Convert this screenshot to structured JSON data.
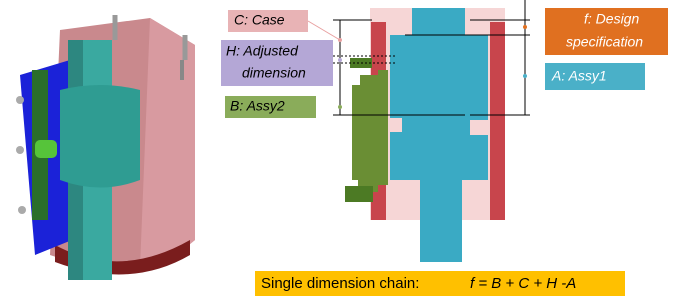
{
  "labels": {
    "case": "C: Case",
    "adjusted": [
      "H: Adjusted",
      "dimension"
    ],
    "assy2": "B: Assy2",
    "design": [
      "f: Design",
      "specification"
    ],
    "assy1": "A: Assy1"
  },
  "caption": {
    "prefix": "Single dimension chain:",
    "formula": "f = B + C + H -A"
  }
}
